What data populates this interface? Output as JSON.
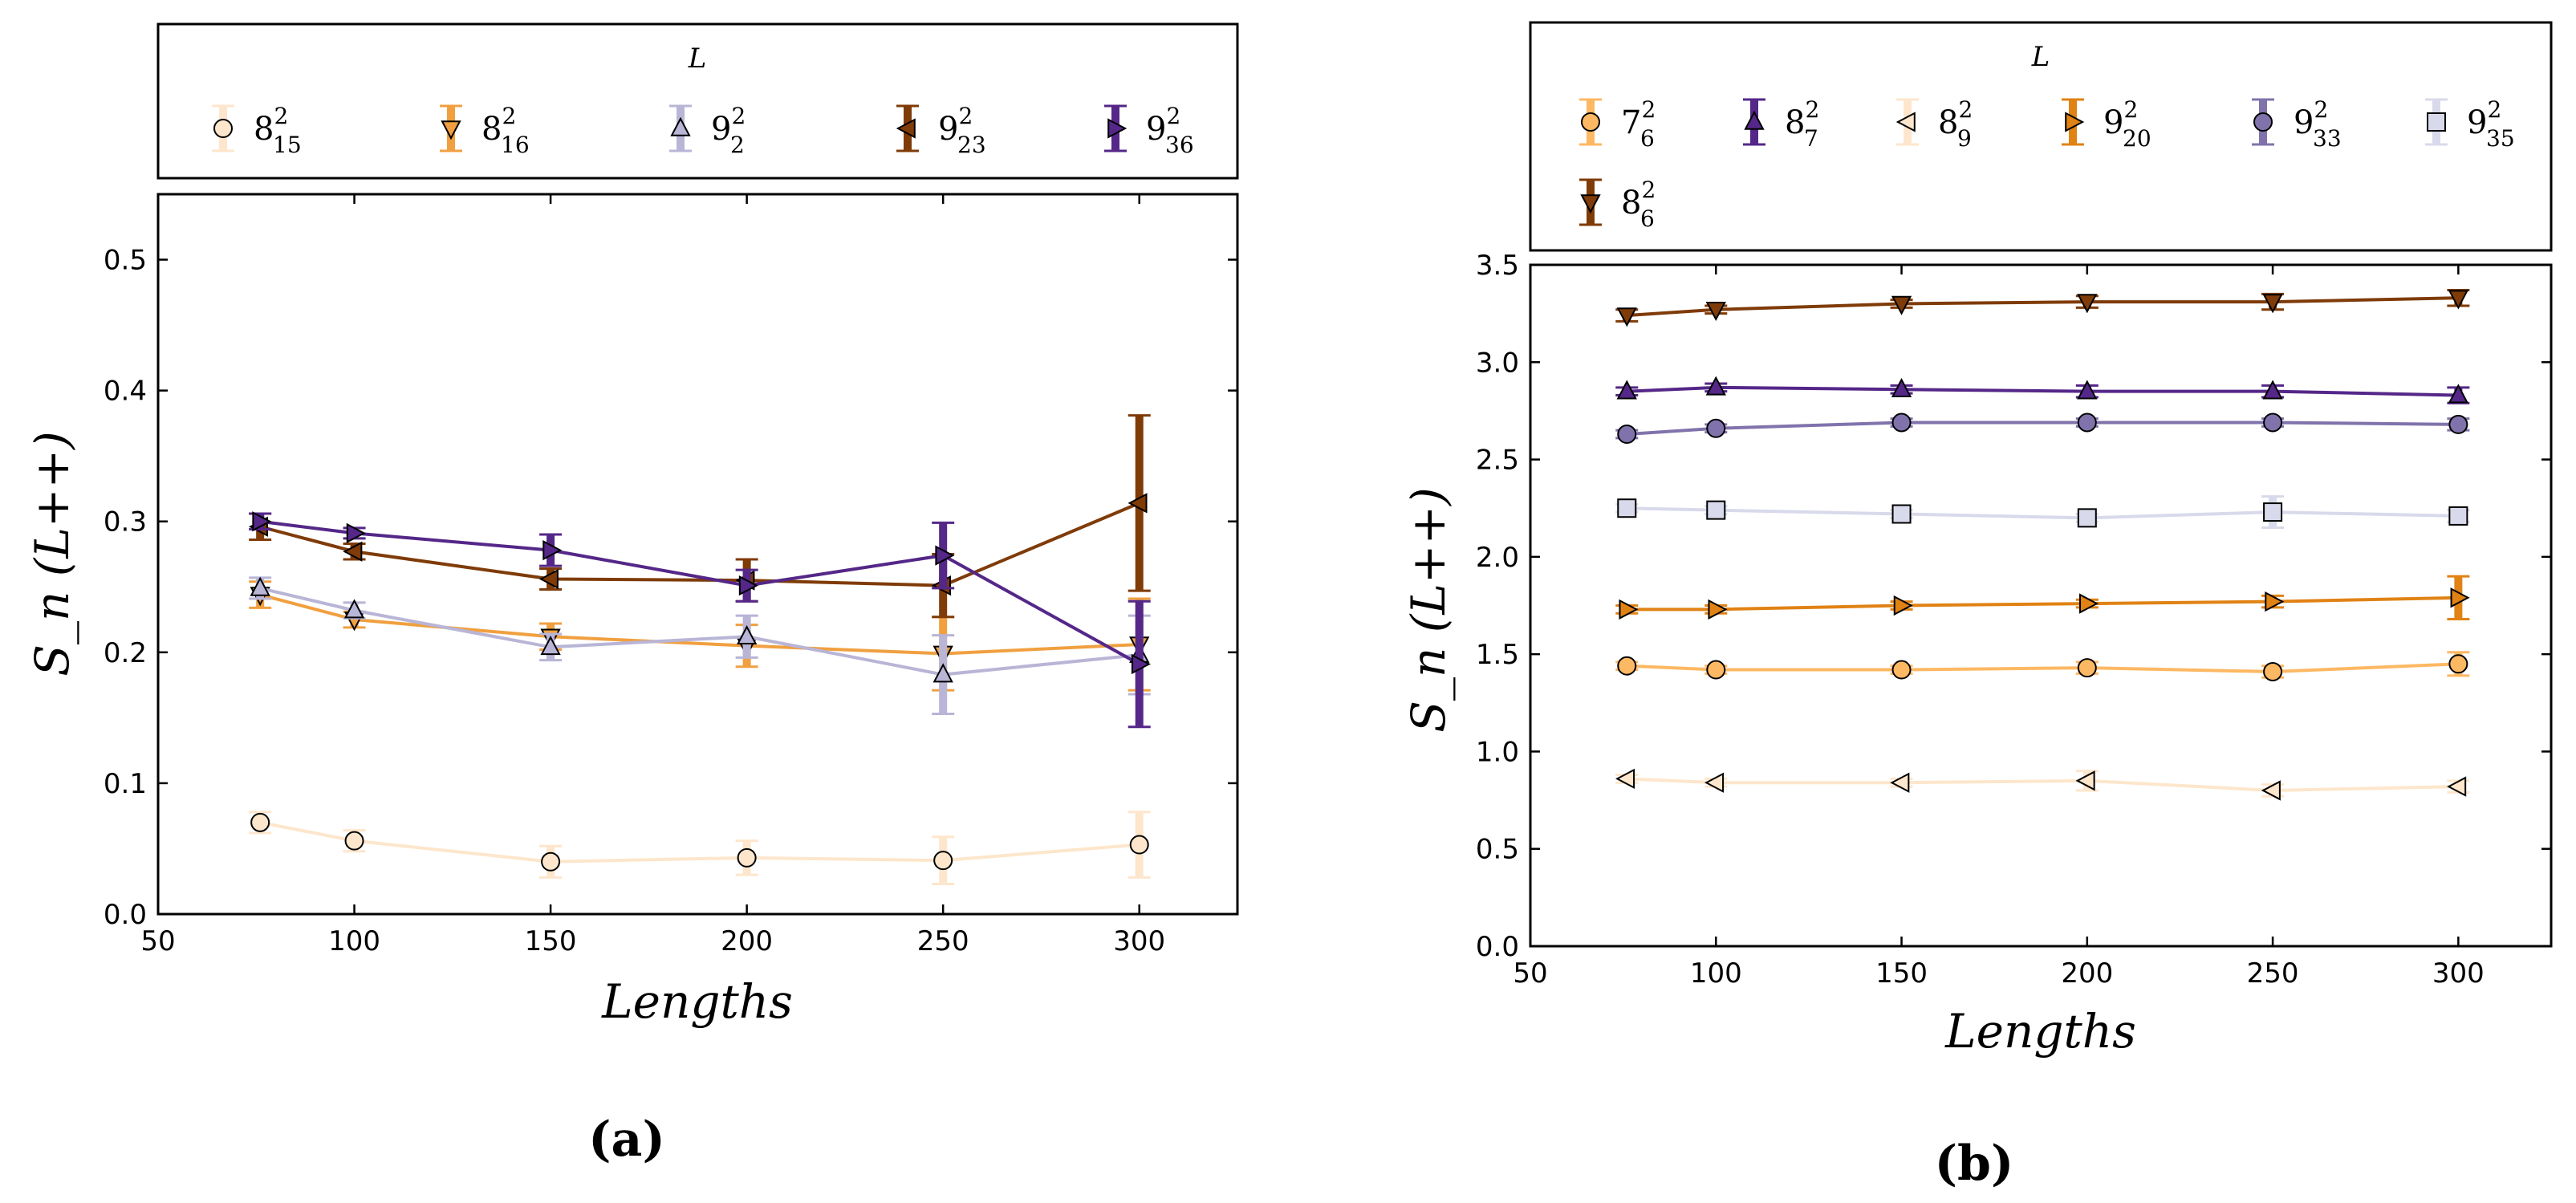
{
  "chart_data": [
    {
      "type": "line",
      "panel": "(a)",
      "xlabel": "Lengths",
      "ylabel": "S_n (L++)",
      "legend_title": "L",
      "legend_placement": "top",
      "xlim": [
        50,
        325
      ],
      "ylim": [
        0,
        0.55
      ],
      "xticks": [
        "50",
        "100",
        "150",
        "200",
        "250",
        "300"
      ],
      "yticks": [
        "0.0",
        "0.1",
        "0.2",
        "0.3",
        "0.4",
        "0.5"
      ],
      "x": [
        76,
        100,
        150,
        200,
        250,
        300
      ],
      "series": [
        {
          "name": "8²₁₅",
          "base": "8",
          "sup": "2",
          "sub": "15",
          "color": "#fde6cc",
          "marker": "circle",
          "values": [
            0.07,
            0.056,
            0.04,
            0.043,
            0.041,
            0.053
          ],
          "errors": [
            0.008,
            0.008,
            0.012,
            0.013,
            0.018,
            0.025
          ]
        },
        {
          "name": "8²₁₆",
          "base": "8",
          "sup": "2",
          "sub": "16",
          "color": "#f0a040",
          "marker": "triangle-down",
          "values": [
            0.244,
            0.225,
            0.212,
            0.205,
            0.199,
            0.206
          ],
          "errors": [
            0.01,
            0.006,
            0.01,
            0.016,
            0.028,
            0.035
          ]
        },
        {
          "name": "9²₂",
          "base": "9",
          "sup": "2",
          "sub": "2",
          "color": "#b8b5d6",
          "marker": "triangle-up",
          "values": [
            0.249,
            0.232,
            0.204,
            0.212,
            0.183,
            0.198
          ],
          "errors": [
            0.008,
            0.006,
            0.01,
            0.016,
            0.03,
            0.03
          ]
        },
        {
          "name": "9²₂₃",
          "base": "9",
          "sup": "2",
          "sub": "23",
          "color": "#7f3b08",
          "marker": "triangle-left",
          "values": [
            0.296,
            0.277,
            0.256,
            0.255,
            0.251,
            0.314
          ],
          "errors": [
            0.01,
            0.006,
            0.008,
            0.016,
            0.024,
            0.067
          ]
        },
        {
          "name": "9²₃₆",
          "base": "9",
          "sup": "2",
          "sub": "36",
          "color": "#542788",
          "marker": "triangle-right",
          "values": [
            0.3,
            0.291,
            0.278,
            0.251,
            0.274,
            0.191
          ],
          "errors": [
            0.006,
            0.004,
            0.012,
            0.012,
            0.025,
            0.048
          ]
        }
      ]
    },
    {
      "type": "line",
      "panel": "(b)",
      "xlabel": "Lengths",
      "ylabel": "S_n (L++)",
      "legend_title": "L",
      "legend_placement": "top",
      "xlim": [
        50,
        325
      ],
      "ylim": [
        0,
        3.5
      ],
      "xticks": [
        "50",
        "100",
        "150",
        "200",
        "250",
        "300"
      ],
      "yticks": [
        "0.0",
        "0.5",
        "1.0",
        "1.5",
        "2.0",
        "2.5",
        "3.0",
        "3.5"
      ],
      "x": [
        76,
        100,
        150,
        200,
        250,
        300
      ],
      "series": [
        {
          "name": "7²₆",
          "base": "7",
          "sup": "2",
          "sub": "6",
          "color": "#fdb863",
          "marker": "circle",
          "values": [
            1.44,
            1.42,
            1.42,
            1.43,
            1.41,
            1.45
          ],
          "errors": [
            0.02,
            0.02,
            0.02,
            0.03,
            0.03,
            0.06
          ]
        },
        {
          "name": "8²₇",
          "base": "8",
          "sup": "2",
          "sub": "7",
          "color": "#542788",
          "marker": "triangle-up",
          "values": [
            2.85,
            2.87,
            2.86,
            2.85,
            2.85,
            2.83
          ],
          "errors": [
            0.02,
            0.02,
            0.02,
            0.03,
            0.03,
            0.04
          ]
        },
        {
          "name": "8²₉",
          "base": "8",
          "sup": "2",
          "sub": "9",
          "color": "#fde6cc",
          "marker": "triangle-left",
          "values": [
            0.86,
            0.84,
            0.84,
            0.85,
            0.8,
            0.82
          ],
          "errors": [
            0.02,
            0.02,
            0.02,
            0.05,
            0.03,
            0.03
          ]
        },
        {
          "name": "9²₂₀",
          "base": "9",
          "sup": "2",
          "sub": "20",
          "color": "#e08214",
          "marker": "triangle-right",
          "values": [
            1.73,
            1.73,
            1.75,
            1.76,
            1.77,
            1.79
          ],
          "errors": [
            0.02,
            0.02,
            0.02,
            0.02,
            0.03,
            0.11
          ]
        },
        {
          "name": "9²₃₃",
          "base": "9",
          "sup": "2",
          "sub": "33",
          "color": "#8073ac",
          "marker": "circle",
          "values": [
            2.63,
            2.66,
            2.69,
            2.69,
            2.69,
            2.68
          ],
          "errors": [
            0.02,
            0.02,
            0.02,
            0.02,
            0.02,
            0.03
          ]
        },
        {
          "name": "9²₃₅",
          "base": "9",
          "sup": "2",
          "sub": "35",
          "color": "#d8daeb",
          "marker": "square",
          "values": [
            2.25,
            2.24,
            2.22,
            2.2,
            2.23,
            2.21
          ],
          "errors": [
            0.02,
            0.02,
            0.02,
            0.02,
            0.08,
            0.03
          ]
        },
        {
          "name": "8²₆",
          "base": "8",
          "sup": "2",
          "sub": "6",
          "color": "#7f3b08",
          "marker": "triangle-down",
          "values": [
            3.24,
            3.27,
            3.3,
            3.31,
            3.31,
            3.33
          ],
          "errors": [
            0.03,
            0.02,
            0.02,
            0.03,
            0.04,
            0.04
          ]
        }
      ]
    }
  ]
}
